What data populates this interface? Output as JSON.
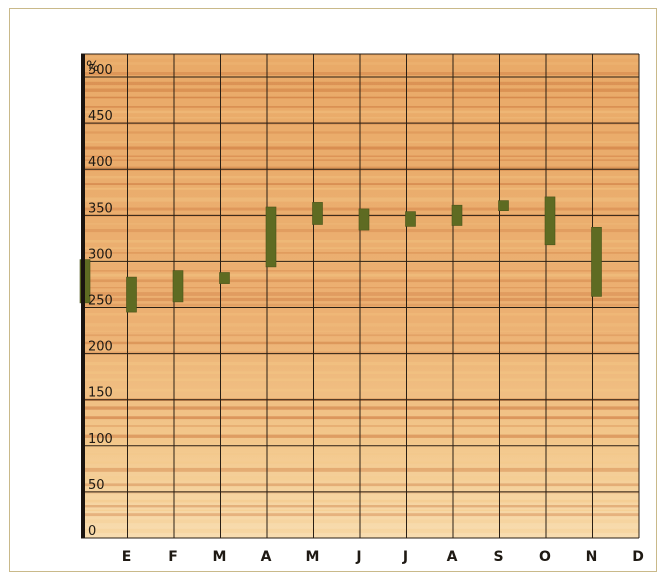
{
  "chart_data": {
    "type": "bar",
    "subtype": "floating-range",
    "unit_label": "%",
    "y_ticks": [
      "0",
      "50",
      "100",
      "150",
      "200",
      "250",
      "300",
      "350",
      "400",
      "450",
      "500"
    ],
    "ylim": [
      0,
      525
    ],
    "grid": true,
    "categories": [
      "E",
      "F",
      "M",
      "A",
      "M",
      "J",
      "J",
      "A",
      "S",
      "O",
      "N",
      "D"
    ],
    "series": [
      {
        "ranges": [
          [
            255,
            302
          ],
          [
            245,
            283
          ],
          [
            256,
            290
          ],
          [
            276,
            288
          ],
          [
            294,
            359
          ],
          [
            340,
            364
          ],
          [
            334,
            357
          ],
          [
            338,
            354
          ],
          [
            339,
            361
          ],
          [
            355,
            366
          ],
          [
            318,
            370
          ],
          [
            262,
            337
          ]
        ]
      }
    ],
    "colors": {
      "bar": "#5e6b22",
      "bar_edge": "#48531a",
      "grid": "#2a1f14",
      "wood_light": "#f4c886",
      "wood_mid": "#e8a560",
      "wood_dark": "#c9733a",
      "axis": "#1a1410"
    }
  }
}
